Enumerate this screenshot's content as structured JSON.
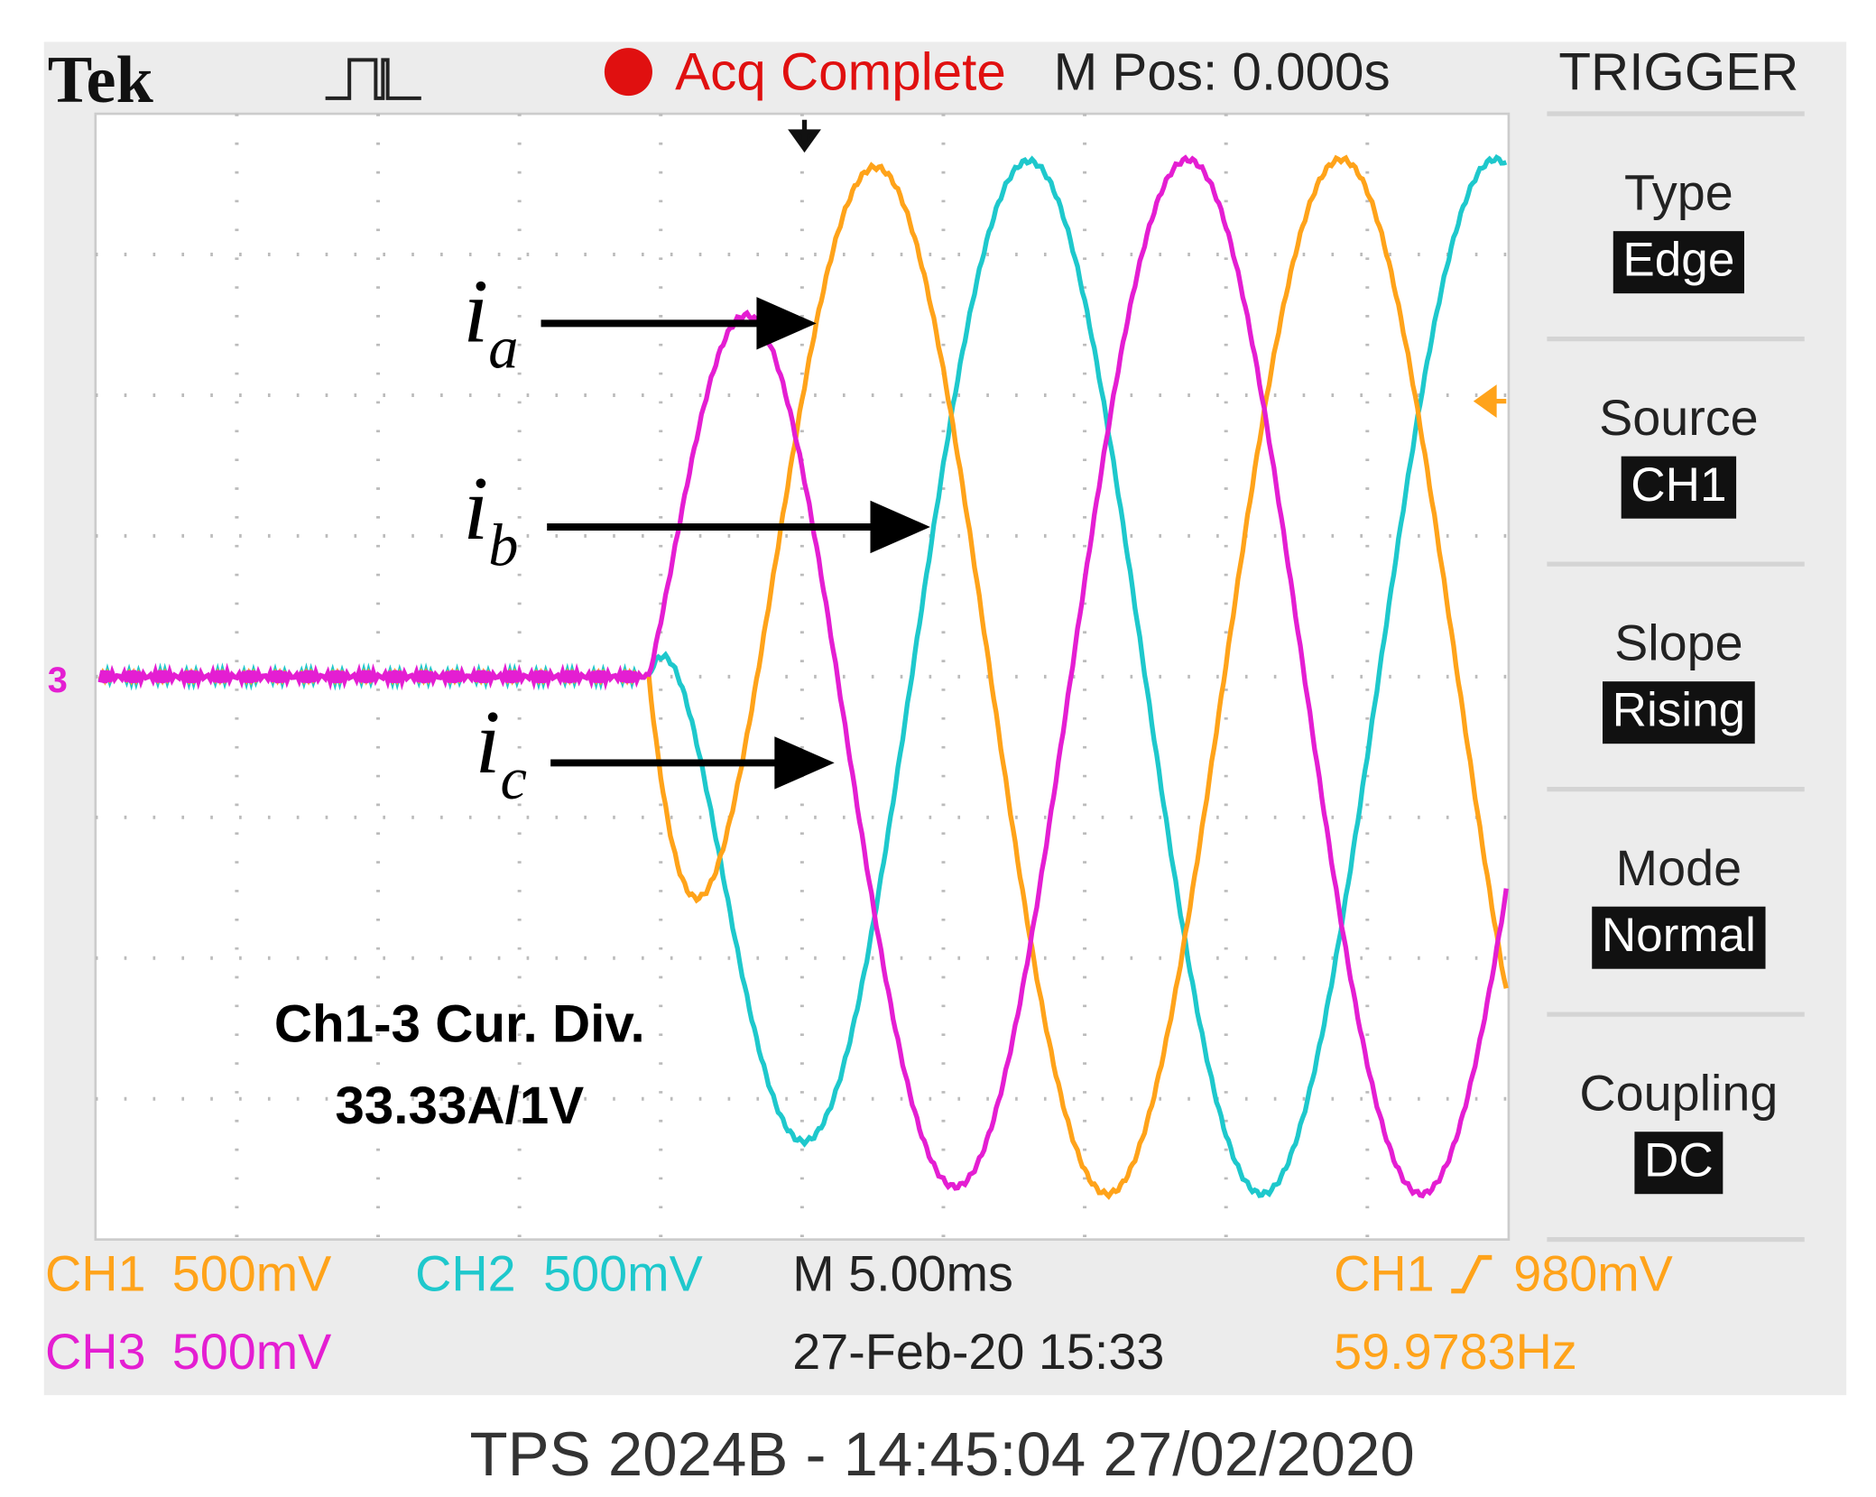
{
  "header": {
    "brand": "Tek",
    "status": "Acq Complete",
    "position": "M Pos: 0.000s",
    "menu_title": "TRIGGER"
  },
  "channel_marker": "3",
  "menu": [
    {
      "label": "Type",
      "value": "Edge"
    },
    {
      "label": "Source",
      "value": "CH1"
    },
    {
      "label": "Slope",
      "value": "Rising"
    },
    {
      "label": "Mode",
      "value": "Normal"
    },
    {
      "label": "Coupling",
      "value": "DC"
    }
  ],
  "readouts": {
    "ch1": {
      "name": "CH1",
      "scale": "500mV"
    },
    "ch2": {
      "name": "CH2",
      "scale": "500mV"
    },
    "ch3": {
      "name": "CH3",
      "scale": "500mV"
    },
    "timebase": "M 5.00ms",
    "date": "27-Feb-20 15:33",
    "trigger": {
      "name": "CH1",
      "level": "980mV"
    },
    "frequency": "59.9783Hz"
  },
  "annotations": [
    {
      "symbol": "i",
      "subscript": "a"
    },
    {
      "symbol": "i",
      "subscript": "b"
    },
    {
      "symbol": "i",
      "subscript": "c"
    }
  ],
  "note": [
    "Ch1-3 Cur. Div.",
    "33.33A/1V"
  ],
  "footer": "TPS 2024B - 14:45:04   27/02/2020"
}
